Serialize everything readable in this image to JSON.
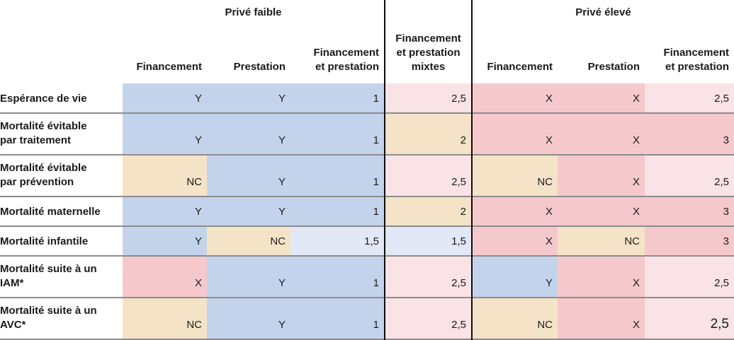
{
  "chart_data": {
    "type": "table",
    "title": "",
    "column_groups": [
      {
        "label": "Privé faible",
        "span": 3
      },
      {
        "label": "Financement\net prestation\nmixtes",
        "span": 1
      },
      {
        "label": "Privé élevé",
        "span": 3
      }
    ],
    "sub_headers": [
      "Financement",
      "Prestation",
      "Financement\net prestation",
      "Financement",
      "Prestation",
      "Financement\net prestation"
    ],
    "colors": {
      "blue": "#c4d3ec",
      "tan": "#f5e3c7",
      "pink": "#f5c8cc",
      "lightpink": "#fae3e7",
      "lightblue": "#e2e8f5"
    },
    "rows": [
      {
        "label": "Espérance de vie",
        "cells": [
          {
            "value": "Y",
            "color": "blue"
          },
          {
            "value": "Y",
            "color": "blue"
          },
          {
            "value": "1",
            "color": "blue"
          },
          {
            "value": "2,5",
            "color": "lightpink"
          },
          {
            "value": "X",
            "color": "pink"
          },
          {
            "value": "X",
            "color": "pink"
          },
          {
            "value": "2,5",
            "color": "lightpink"
          }
        ]
      },
      {
        "label": "Mortalité évitable\npar traitement",
        "cells": [
          {
            "value": "Y",
            "color": "blue"
          },
          {
            "value": "Y",
            "color": "blue"
          },
          {
            "value": "1",
            "color": "blue"
          },
          {
            "value": "2",
            "color": "tan"
          },
          {
            "value": "X",
            "color": "pink"
          },
          {
            "value": "X",
            "color": "pink"
          },
          {
            "value": "3",
            "color": "pink"
          }
        ]
      },
      {
        "label": "Mortalité évitable\npar prévention",
        "cells": [
          {
            "value": "NC",
            "color": "tan"
          },
          {
            "value": "Y",
            "color": "blue"
          },
          {
            "value": "1",
            "color": "blue"
          },
          {
            "value": "2,5",
            "color": "lightpink"
          },
          {
            "value": "NC",
            "color": "tan"
          },
          {
            "value": "X",
            "color": "pink"
          },
          {
            "value": "2,5",
            "color": "lightpink"
          }
        ]
      },
      {
        "label": "Mortalité maternelle",
        "cells": [
          {
            "value": "Y",
            "color": "blue"
          },
          {
            "value": "Y",
            "color": "blue"
          },
          {
            "value": "1",
            "color": "blue"
          },
          {
            "value": "2",
            "color": "tan"
          },
          {
            "value": "X",
            "color": "pink"
          },
          {
            "value": "X",
            "color": "pink"
          },
          {
            "value": "3",
            "color": "pink"
          }
        ]
      },
      {
        "label": "Mortalité infantile",
        "cells": [
          {
            "value": "Y",
            "color": "blue"
          },
          {
            "value": "NC",
            "color": "tan"
          },
          {
            "value": "1,5",
            "color": "lightblue"
          },
          {
            "value": "1,5",
            "color": "lightblue"
          },
          {
            "value": "X",
            "color": "pink"
          },
          {
            "value": "NC",
            "color": "tan"
          },
          {
            "value": "3",
            "color": "pink"
          }
        ]
      },
      {
        "label": "Mortalité suite à un\nIAM*",
        "cells": [
          {
            "value": "X",
            "color": "pink"
          },
          {
            "value": "Y",
            "color": "blue"
          },
          {
            "value": "1",
            "color": "blue"
          },
          {
            "value": "2,5",
            "color": "lightpink"
          },
          {
            "value": "Y",
            "color": "blue"
          },
          {
            "value": "X",
            "color": "pink"
          },
          {
            "value": "2,5",
            "color": "lightpink"
          }
        ]
      },
      {
        "label": "Mortalité suite à un\nAVC*",
        "cells": [
          {
            "value": "NC",
            "color": "tan"
          },
          {
            "value": "Y",
            "color": "blue"
          },
          {
            "value": "1",
            "color": "blue"
          },
          {
            "value": "2,5",
            "color": "lightpink"
          },
          {
            "value": "NC",
            "color": "tan"
          },
          {
            "value": "X",
            "color": "pink"
          },
          {
            "value": "2,5",
            "color": "lightpink",
            "large": true
          }
        ]
      }
    ]
  }
}
